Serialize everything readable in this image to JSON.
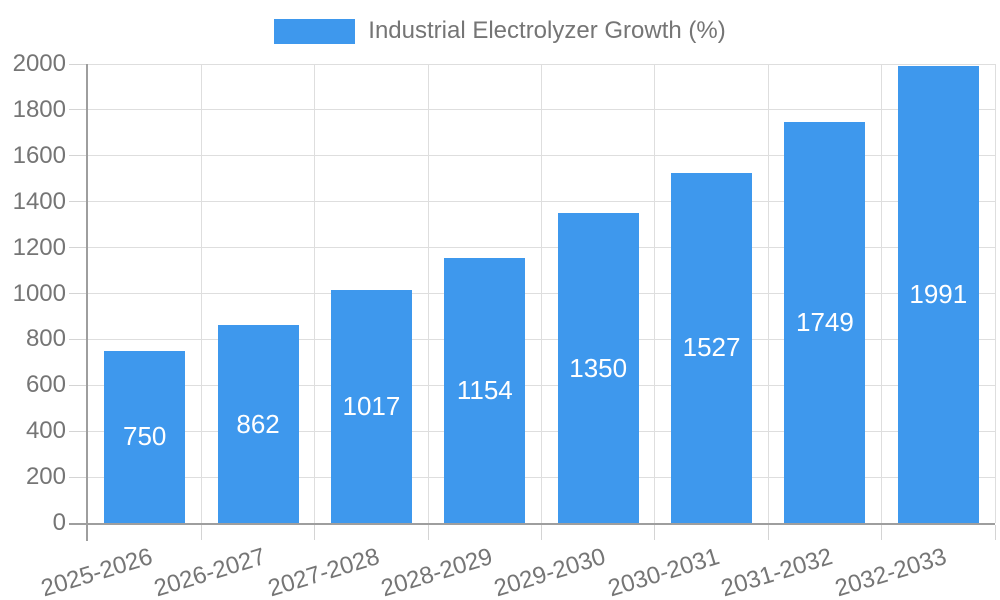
{
  "legend": {
    "label": "Industrial Electrolyzer Growth (%)"
  },
  "colors": {
    "bar": "#3E98ED",
    "axis": "#9E9E9E",
    "grid": "#DEDEDE",
    "tick": "#D4D4D4",
    "text": "#757575",
    "value_label": "#FFFFFF",
    "background": "#FFFFFF"
  },
  "chart_data": {
    "type": "bar",
    "title": "Industrial Electrolyzer Growth (%)",
    "series_name": "Industrial Electrolyzer Growth (%)",
    "categories": [
      "2025-2026",
      "2026-2027",
      "2027-2028",
      "2028-2029",
      "2029-2030",
      "2030-2031",
      "2031-2032",
      "2032-2033"
    ],
    "values": [
      750,
      862,
      1017,
      1154,
      1350,
      1527,
      1749,
      1991
    ],
    "xlabel": "",
    "ylabel": "",
    "ylim": [
      0,
      2000
    ],
    "ytick_step": 200,
    "y_ticks": [
      "0",
      "200",
      "400",
      "600",
      "800",
      "1000",
      "1200",
      "1400",
      "1600",
      "1800",
      "2000"
    ],
    "grid": true,
    "legend_position": "top-center",
    "value_labels_position": "inside-center",
    "x_label_rotation_deg": -17
  }
}
